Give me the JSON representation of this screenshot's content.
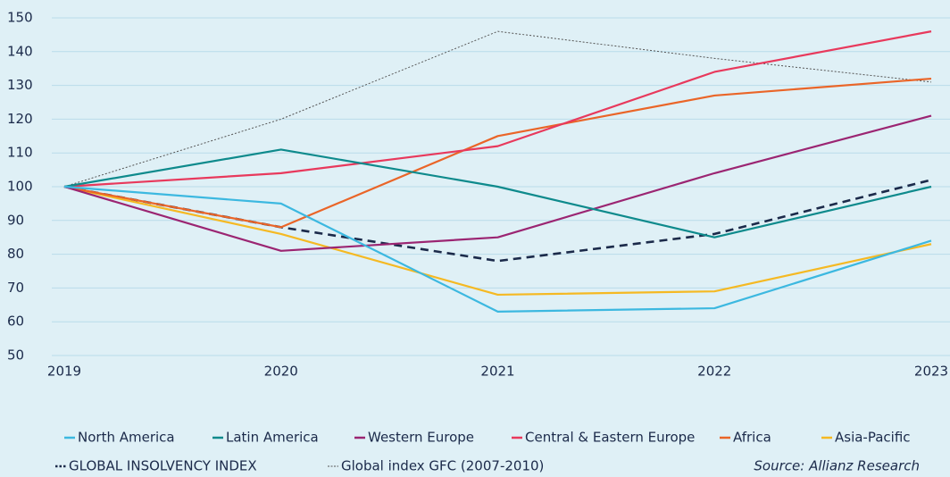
{
  "chart_data": {
    "type": "line",
    "categories": [
      "2019",
      "2020",
      "2021",
      "2022",
      "2023"
    ],
    "series": [
      {
        "name": "North America",
        "color": "#3cb8e0",
        "style": "solid",
        "values": [
          100,
          95,
          63,
          64,
          84
        ]
      },
      {
        "name": "Latin America",
        "color": "#0e8a8c",
        "style": "solid",
        "values": [
          100,
          111,
          100,
          85,
          100
        ]
      },
      {
        "name": "Western Europe",
        "color": "#9b2572",
        "style": "solid",
        "values": [
          100,
          81,
          85,
          104,
          121
        ]
      },
      {
        "name": "Central & Eastern Europe",
        "color": "#e8395c",
        "style": "solid",
        "values": [
          100,
          104,
          112,
          134,
          146
        ]
      },
      {
        "name": "Africa",
        "color": "#ea6528",
        "style": "solid",
        "values": [
          100,
          88,
          115,
          127,
          132
        ]
      },
      {
        "name": "Asia-Pacific",
        "color": "#f5b923",
        "style": "solid",
        "values": [
          100,
          86,
          68,
          69,
          83
        ]
      },
      {
        "name": "GLOBAL INSOLVENCY INDEX",
        "color": "#1b2a4a",
        "style": "dashed",
        "values": [
          100,
          88,
          78,
          86,
          102
        ]
      },
      {
        "name": "Global index GFC (2007-2010)",
        "color": "#555555",
        "style": "dotted",
        "values": [
          100,
          120,
          146,
          138,
          131
        ]
      }
    ],
    "ylim": [
      50,
      150
    ],
    "yticks": [
      50,
      60,
      70,
      80,
      90,
      100,
      110,
      120,
      130,
      140,
      150
    ],
    "grid": true,
    "source": "Source: Allianz Research"
  }
}
